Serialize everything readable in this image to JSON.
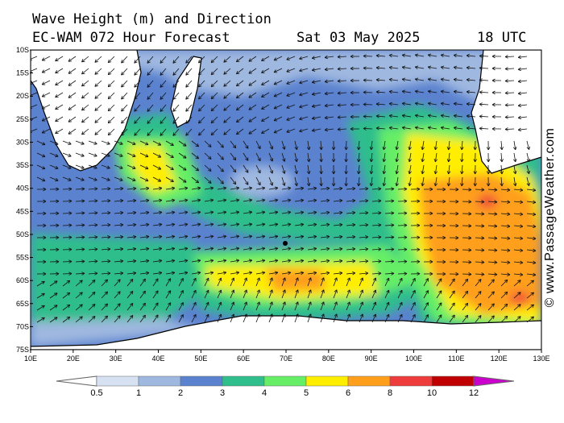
{
  "header": {
    "title": "Wave Height (m) and Direction",
    "model": "EC-WAM 072 Hour Forecast",
    "date": "Sat 03 May 2025",
    "time": "18 UTC"
  },
  "credit": "© www.PassageWeather.com",
  "map": {
    "lon_range": [
      10,
      130
    ],
    "lat_range": [
      -75,
      -10
    ],
    "lat_ticks": [
      "10S",
      "15S",
      "20S",
      "25S",
      "30S",
      "35S",
      "40S",
      "45S",
      "50S",
      "55S",
      "60S",
      "65S",
      "70S",
      "75S"
    ],
    "lon_ticks": [
      "10E",
      "20E",
      "30E",
      "40E",
      "50E",
      "60E",
      "70E",
      "80E",
      "90E",
      "100E",
      "110E",
      "120E",
      "130E"
    ]
  },
  "colorbar": {
    "labels": [
      "0.5",
      "1",
      "2",
      "3",
      "4",
      "5",
      "6",
      "8",
      "10",
      "12"
    ],
    "colors": [
      "#ffffff",
      "#d6e2f2",
      "#9fb8e0",
      "#5b82cf",
      "#2fbe8c",
      "#66ee66",
      "#ffee00",
      "#ff9f1c",
      "#ee3b3b",
      "#c00000",
      "#cc00cc"
    ]
  }
}
